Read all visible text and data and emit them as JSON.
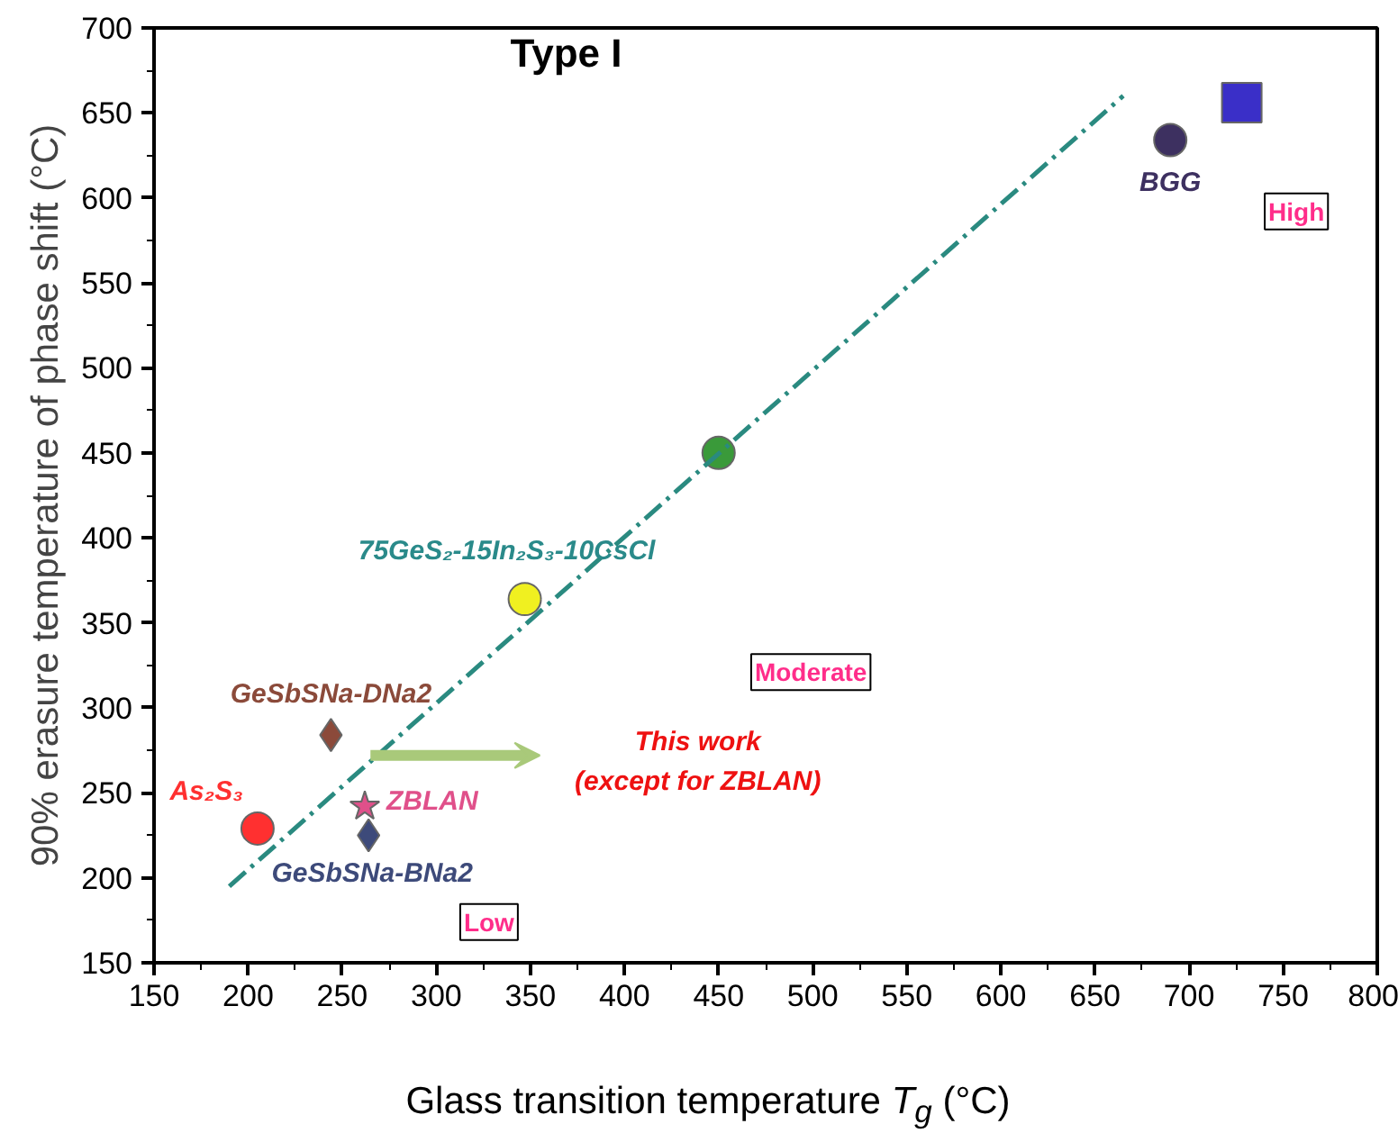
{
  "chart_data": {
    "type": "scatter",
    "title": "Type I",
    "xlabel": "Glass transition temperature T$_{g}$ (°C)",
    "ylabel": "90% erasure temperature of phase shift (°C)",
    "xlim": [
      150,
      800
    ],
    "ylim": [
      150,
      700
    ],
    "xticks": [
      150,
      200,
      250,
      300,
      350,
      400,
      450,
      500,
      550,
      600,
      650,
      700,
      750,
      800
    ],
    "yticks": [
      150,
      200,
      250,
      300,
      350,
      400,
      450,
      500,
      550,
      600,
      650,
      700
    ],
    "grid": false,
    "series": [
      {
        "name": "As₂S₃",
        "color": "#ff3030",
        "marker": "circle",
        "x": [
          205
        ],
        "values": [
          229
        ]
      },
      {
        "name": "GeSbSNa-DNa2",
        "color": "#8b4a3a",
        "marker": "diamond",
        "x": [
          244
        ],
        "values": [
          284
        ]
      },
      {
        "name": "ZBLAN",
        "color": "#e0508a",
        "marker": "star",
        "x": [
          262
        ],
        "values": [
          242
        ]
      },
      {
        "name": "GeSbSNa-BNa2",
        "color": "#3d4a7a",
        "marker": "diamond",
        "x": [
          264
        ],
        "values": [
          225
        ]
      },
      {
        "name": "75GeS₂-15In₂S₃-10CsCl",
        "color": "#f0f020",
        "marker": "circle",
        "x": [
          347
        ],
        "values": [
          364
        ]
      },
      {
        "color": "#3a9a3a",
        "marker": "circle",
        "x": [
          450
        ],
        "values": [
          450
        ]
      },
      {
        "name": "BGG",
        "color": "#3d3060",
        "marker": "circle",
        "x": [
          690
        ],
        "values": [
          634
        ]
      },
      {
        "color": "#3a2fc8",
        "marker": "square",
        "x": [
          728
        ],
        "values": [
          656
        ]
      },
      {
        "type": "line",
        "color": "#2a8a80",
        "line_style": "dashed",
        "marker": "none",
        "x": [
          190,
          665
        ],
        "values": [
          195,
          660
        ]
      }
    ],
    "annotations": [
      "This work\n(except for ZBLAN)",
      "Low",
      "Moderate",
      "High"
    ]
  }
}
